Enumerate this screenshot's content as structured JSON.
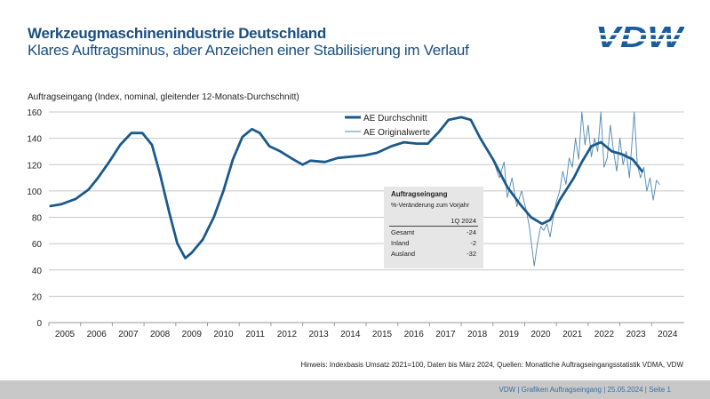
{
  "header": {
    "title": "Werkzeugmaschinenindustrie Deutschland",
    "subtitle": "Klares Auftragsminus, aber Anzeichen einer Stabilisierung im Verlauf",
    "logo_text": "VDW"
  },
  "colors": {
    "title": "#1b4f7e",
    "avg_line": "#1b5a8c",
    "orig_line": "#4f86b3",
    "grid": "#c8c8c8",
    "footer_bg": "#c8c8c8"
  },
  "chart_data": {
    "type": "line",
    "ylabel": "Auftragseingang (Index,  nominal, gleitender 12-Monats-Durchschnitt)",
    "ylim": [
      0,
      160
    ],
    "yticks": [
      0,
      20,
      40,
      60,
      80,
      100,
      120,
      140,
      160
    ],
    "xlim": [
      2005,
      2024.9
    ],
    "xticks": [
      "2005",
      "2006",
      "2007",
      "2008",
      "2009",
      "2010",
      "2011",
      "2012",
      "2013",
      "2014",
      "2015",
      "2016",
      "2017",
      "2018",
      "2019",
      "2020",
      "2021",
      "2022",
      "2023",
      "2024"
    ],
    "grid": true,
    "legend_position": "top-center",
    "series": [
      {
        "name": "AE Durchschnitt",
        "x": [
          2005.05,
          2005.4,
          2005.85,
          2006.25,
          2006.55,
          2006.9,
          2007.25,
          2007.6,
          2007.95,
          2008.25,
          2008.5,
          2008.8,
          2009.05,
          2009.3,
          2009.5,
          2009.85,
          2010.2,
          2010.5,
          2010.8,
          2011.1,
          2011.4,
          2011.65,
          2011.95,
          2012.3,
          2012.7,
          2013.0,
          2013.25,
          2013.7,
          2014.1,
          2014.5,
          2014.95,
          2015.35,
          2015.8,
          2016.2,
          2016.6,
          2016.95,
          2017.3,
          2017.6,
          2018.0,
          2018.3,
          2018.6,
          2019.0,
          2019.45,
          2019.85,
          2020.2,
          2020.55,
          2020.8,
          2021.1,
          2021.55,
          2021.8,
          2022.1,
          2022.4,
          2022.75,
          2023.05,
          2023.4,
          2023.7
        ],
        "y": [
          88.5,
          90,
          94,
          101,
          110,
          122,
          135,
          144,
          144,
          135,
          113,
          83,
          60,
          49,
          53,
          63,
          80,
          100,
          124,
          141,
          147,
          144,
          134,
          130,
          124,
          120,
          123,
          122,
          125,
          126,
          127,
          129,
          134,
          137,
          136,
          136,
          145,
          154,
          156,
          154,
          140,
          124,
          103,
          90,
          80,
          75,
          78,
          93,
          110,
          122,
          134,
          137,
          130,
          128,
          124,
          115
        ]
      },
      {
        "name": "AE Originalwerte",
        "x": [
          2019.0,
          2019.2,
          2019.35,
          2019.45,
          2019.6,
          2019.75,
          2019.9,
          2020.05,
          2020.15,
          2020.3,
          2020.4,
          2020.5,
          2020.6,
          2020.7,
          2020.8,
          2020.9,
          2021.0,
          2021.1,
          2021.2,
          2021.3,
          2021.4,
          2021.5,
          2021.6,
          2021.7,
          2021.8,
          2021.9,
          2022.0,
          2022.1,
          2022.2,
          2022.3,
          2022.4,
          2022.5,
          2022.6,
          2022.7,
          2022.8,
          2022.9,
          2023.0,
          2023.1,
          2023.2,
          2023.3,
          2023.45,
          2023.55,
          2023.65,
          2023.75,
          2023.85,
          2023.95,
          2024.05,
          2024.15,
          2024.25
        ],
        "y": [
          124,
          110,
          122,
          95,
          110,
          88,
          100,
          85,
          72,
          43,
          60,
          73,
          70,
          75,
          65,
          80,
          92,
          100,
          115,
          105,
          125,
          118,
          140,
          124,
          160,
          135,
          150,
          126,
          140,
          130,
          160,
          118,
          125,
          150,
          130,
          115,
          140,
          120,
          130,
          110,
          160,
          120,
          110,
          118,
          100,
          110,
          93,
          108,
          105
        ]
      }
    ],
    "inset_table": {
      "title": "Auftragseingang",
      "subtitle": "%-Veränderung zum Vorjahr",
      "column": "1Q 2024",
      "rows": [
        {
          "label": "Gesamt",
          "value": "-24"
        },
        {
          "label": "Inland",
          "value": "-2"
        },
        {
          "label": "Ausland",
          "value": "-32"
        }
      ]
    }
  },
  "note": "Hinweis: Indexbasis Umsatz 2021=100, Daten bis März 2024, Quellen: Monatliche Auftragseingangsstatistik VDMA, VDW",
  "footer": {
    "text": "VDW  |  Grafiken Auftragseingang  |   25.05.2024    |  Seite  1"
  }
}
